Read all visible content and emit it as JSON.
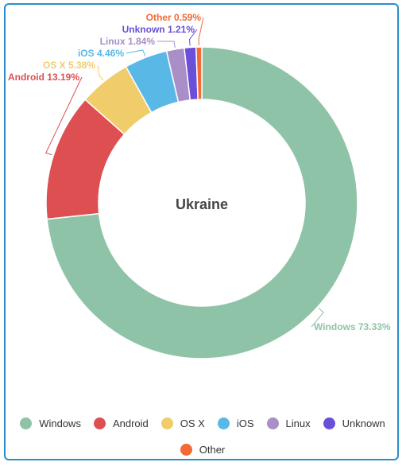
{
  "chart_data": {
    "type": "pie",
    "title": "Ukraine",
    "slices": [
      {
        "name": "Windows",
        "value": 73.33,
        "label": "Windows 73.33%",
        "color": "#8fc3a7"
      },
      {
        "name": "Android",
        "value": 13.19,
        "label": "Android 13.19%",
        "color": "#dd4f51"
      },
      {
        "name": "OS X",
        "value": 5.38,
        "label": "OS X 5.38%",
        "color": "#f0cc6a"
      },
      {
        "name": "iOS",
        "value": 4.46,
        "label": "iOS 4.46%",
        "color": "#5ab8e6"
      },
      {
        "name": "Linux",
        "value": 1.84,
        "label": "Linux 1.84%",
        "color": "#a98ec8"
      },
      {
        "name": "Unknown",
        "value": 1.21,
        "label": "Unknown 1.21%",
        "color": "#6a4fd8"
      },
      {
        "name": "Other",
        "value": 0.59,
        "label": "Other 0.59%",
        "color": "#f26a35"
      }
    ],
    "legend_placement": "bottom"
  }
}
